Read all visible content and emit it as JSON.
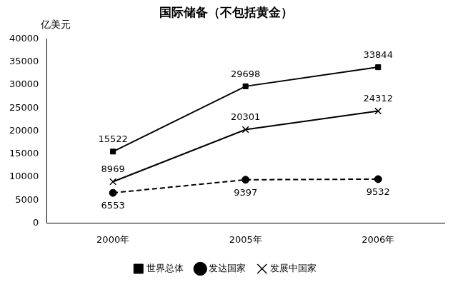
{
  "chart_data": {
    "type": "line",
    "title": "国际储备（不包括黄金）",
    "ylabel": "亿美元",
    "categories": [
      "2000年",
      "2005年",
      "2006年"
    ],
    "series": [
      {
        "name": "世界总体",
        "color": "#000000",
        "marker": "square",
        "line_style": "solid",
        "values": [
          15522,
          29698,
          33844
        ]
      },
      {
        "name": "发达国家",
        "color": "#000000",
        "marker": "circle",
        "line_style": "dashed",
        "values": [
          6553,
          9397,
          9532
        ]
      },
      {
        "name": "发展中国家",
        "color": "#000000",
        "marker": "cross",
        "line_style": "solid",
        "values": [
          8969,
          20301,
          24312
        ]
      }
    ],
    "ylim": [
      0,
      40000
    ],
    "yticks": [
      0,
      5000,
      10000,
      15000,
      20000,
      25000,
      30000,
      35000,
      40000
    ],
    "grid": false,
    "legend": "bottom",
    "data_labels": true
  }
}
